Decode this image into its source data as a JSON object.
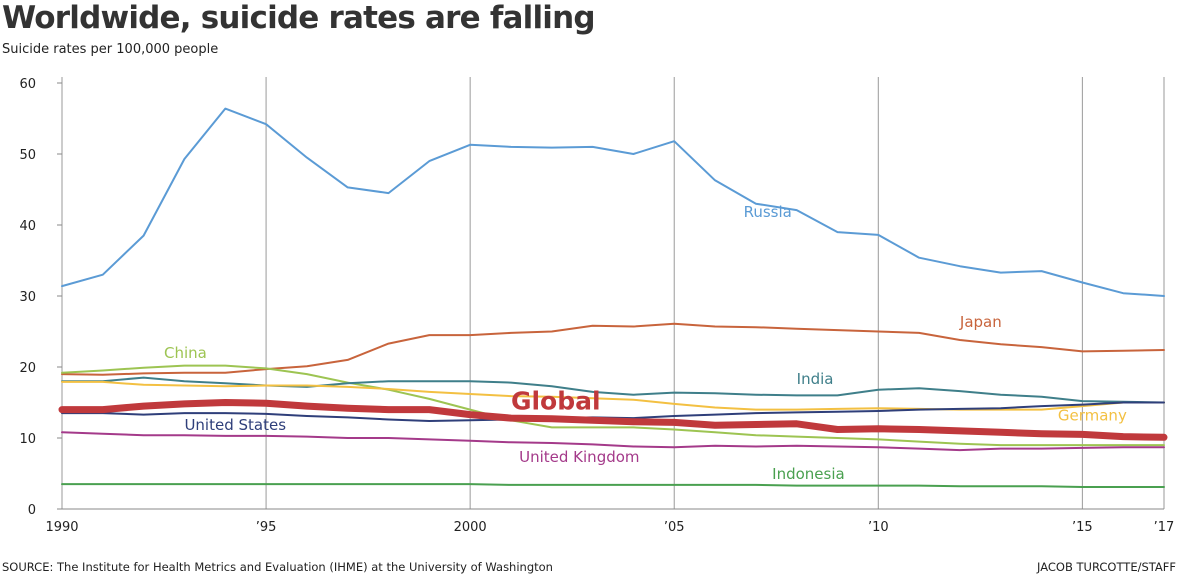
{
  "title": "Worldwide, suicide rates are falling",
  "subtitle": "Suicide rates per 100,000 people",
  "source": "SOURCE: The Institute for Health Metrics and Evaluation (IHME) at the University of Washington",
  "credit": "JACOB TURCOTTE/STAFF",
  "chart_data": {
    "type": "line",
    "title": "Worldwide, suicide rates are falling",
    "ylabel": "Suicide rates per 100,000 people",
    "xlabel": "",
    "xlim": [
      1990,
      2017
    ],
    "ylim": [
      0,
      60
    ],
    "grid": "vertical",
    "x_ticks": [
      1990,
      1995,
      2000,
      2005,
      2010,
      2015,
      2017
    ],
    "x_tick_labels": [
      "1990",
      "’95",
      "2000",
      "’05",
      "’10",
      "’15",
      "’17"
    ],
    "y_ticks": [
      0,
      10,
      20,
      30,
      40,
      50,
      60
    ],
    "y_tick_labels": [
      "0",
      "10",
      "20",
      "30",
      "40",
      "50",
      "60"
    ],
    "x": [
      1990,
      1991,
      1992,
      1993,
      1994,
      1995,
      1996,
      1997,
      1998,
      1999,
      2000,
      2001,
      2002,
      2003,
      2004,
      2005,
      2006,
      2007,
      2008,
      2009,
      2010,
      2011,
      2012,
      2013,
      2014,
      2015,
      2016,
      2017
    ],
    "series": [
      {
        "name": "Russia",
        "color": "#5b9bd5",
        "width": 2,
        "values": [
          31.4,
          33.0,
          38.5,
          49.3,
          56.4,
          54.2,
          49.5,
          45.3,
          44.5,
          49.0,
          51.3,
          51.0,
          50.9,
          51.0,
          50.0,
          51.8,
          46.3,
          43.0,
          42.1,
          39.0,
          38.6,
          35.4,
          34.2,
          33.3,
          33.5,
          31.9,
          30.4,
          30.0
        ]
      },
      {
        "name": "Japan",
        "color": "#c8643c",
        "width": 2,
        "values": [
          19.0,
          18.9,
          19.1,
          19.2,
          19.2,
          19.7,
          20.1,
          21.0,
          23.3,
          24.5,
          24.5,
          24.8,
          25.0,
          25.8,
          25.7,
          26.1,
          25.7,
          25.6,
          25.4,
          25.2,
          25.0,
          24.8,
          23.8,
          23.2,
          22.8,
          22.2,
          22.3,
          22.4
        ]
      },
      {
        "name": "China",
        "color": "#9dc452",
        "width": 2,
        "values": [
          19.2,
          19.5,
          19.9,
          20.2,
          20.2,
          19.8,
          19.0,
          17.8,
          16.8,
          15.5,
          14.0,
          12.5,
          11.5,
          11.5,
          11.5,
          11.2,
          10.8,
          10.4,
          10.2,
          10.0,
          9.8,
          9.5,
          9.2,
          9.0,
          9.0,
          9.0,
          9.0,
          9.0
        ]
      },
      {
        "name": "India",
        "color": "#3f7f8a",
        "width": 2,
        "values": [
          18.0,
          18.0,
          18.5,
          18.0,
          17.7,
          17.4,
          17.2,
          17.7,
          18.0,
          18.0,
          18.0,
          17.8,
          17.3,
          16.5,
          16.1,
          16.4,
          16.3,
          16.1,
          16.0,
          16.0,
          16.8,
          17.0,
          16.6,
          16.1,
          15.8,
          15.2,
          15.1,
          15.0
        ]
      },
      {
        "name": "Germany",
        "color": "#f3c042",
        "width": 2,
        "values": [
          17.9,
          17.9,
          17.5,
          17.4,
          17.3,
          17.4,
          17.4,
          17.2,
          16.9,
          16.5,
          16.2,
          15.9,
          15.8,
          15.6,
          15.4,
          14.8,
          14.3,
          14.0,
          14.0,
          14.1,
          14.2,
          14.1,
          14.0,
          14.0,
          14.0,
          14.5,
          15.0,
          15.0
        ]
      },
      {
        "name": "United States",
        "color": "#2f3f7a",
        "width": 2,
        "values": [
          13.5,
          13.5,
          13.3,
          13.5,
          13.5,
          13.4,
          13.1,
          12.9,
          12.6,
          12.4,
          12.5,
          12.6,
          12.8,
          12.9,
          12.8,
          13.1,
          13.3,
          13.5,
          13.6,
          13.7,
          13.8,
          14.0,
          14.1,
          14.2,
          14.5,
          14.7,
          15.0,
          15.0
        ]
      },
      {
        "name": "United Kingdom",
        "color": "#a43a8a",
        "width": 2,
        "values": [
          10.8,
          10.6,
          10.4,
          10.4,
          10.3,
          10.3,
          10.2,
          10.0,
          10.0,
          9.8,
          9.6,
          9.4,
          9.3,
          9.1,
          8.8,
          8.7,
          8.9,
          8.8,
          8.9,
          8.8,
          8.7,
          8.5,
          8.3,
          8.5,
          8.5,
          8.6,
          8.7,
          8.7
        ]
      },
      {
        "name": "Indonesia",
        "color": "#4aa050",
        "width": 2,
        "values": [
          3.5,
          3.5,
          3.5,
          3.5,
          3.5,
          3.5,
          3.5,
          3.5,
          3.5,
          3.5,
          3.5,
          3.4,
          3.4,
          3.4,
          3.4,
          3.4,
          3.4,
          3.4,
          3.3,
          3.3,
          3.3,
          3.3,
          3.2,
          3.2,
          3.2,
          3.1,
          3.1,
          3.1
        ]
      },
      {
        "name": "Global",
        "color": "#c0393c",
        "width": 7,
        "values": [
          14.0,
          14.0,
          14.5,
          14.8,
          15.0,
          14.9,
          14.5,
          14.2,
          14.0,
          14.0,
          13.3,
          12.8,
          12.7,
          12.5,
          12.3,
          12.2,
          11.8,
          11.9,
          12.0,
          11.2,
          11.3,
          11.2,
          11.0,
          10.8,
          10.6,
          10.5,
          10.2,
          10.1
        ]
      }
    ],
    "annotations": [
      {
        "text": "Russia",
        "x": 2006.7,
        "y": 41.1,
        "color": "#5b9bd5"
      },
      {
        "text": "Japan",
        "x": 2012.0,
        "y": 25.6,
        "color": "#c8643c"
      },
      {
        "text": "China",
        "x": 1992.5,
        "y": 21.3,
        "color": "#9dc452"
      },
      {
        "text": "India",
        "x": 2008.0,
        "y": 17.6,
        "color": "#3f7f8a"
      },
      {
        "text": "Global",
        "x": 2001.0,
        "y": 14.0,
        "color": "#c0393c",
        "size": "large"
      },
      {
        "text": "Germany",
        "x": 2014.4,
        "y": 12.5,
        "color": "#f3c042"
      },
      {
        "text": "United States",
        "x": 1993.0,
        "y": 11.1,
        "color": "#2f3f7a"
      },
      {
        "text": "United Kingdom",
        "x": 2001.2,
        "y": 6.6,
        "color": "#a43a8a"
      },
      {
        "text": "Indonesia",
        "x": 2007.4,
        "y": 4.2,
        "color": "#4aa050"
      }
    ]
  }
}
